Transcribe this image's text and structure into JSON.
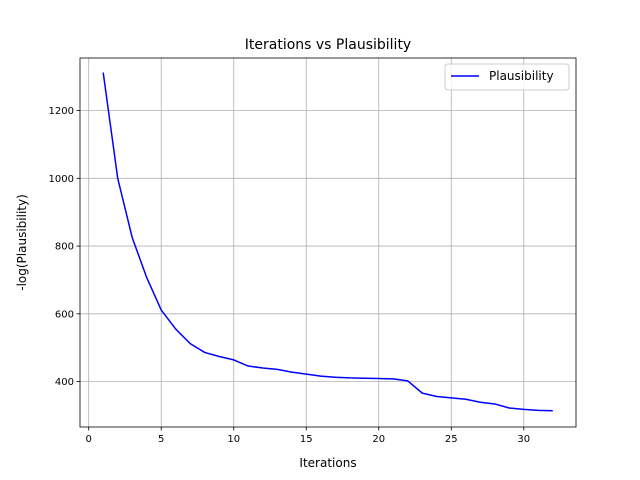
{
  "chart_data": {
    "type": "line",
    "title": "Iterations vs Plausibility",
    "xlabel": "Iterations",
    "ylabel": "-log(Plausibility)",
    "xlim": [
      -0.6,
      33.6
    ],
    "ylim": [
      266,
      1355
    ],
    "xticks": [
      0,
      5,
      10,
      15,
      20,
      25,
      30
    ],
    "yticks": [
      400,
      600,
      800,
      1000,
      1200
    ],
    "grid": true,
    "legend_position": "top-right",
    "series": [
      {
        "name": "Plausibility",
        "color": "#0000ff",
        "x": [
          1,
          2,
          3,
          4,
          5,
          6,
          7,
          8,
          9,
          10,
          11,
          12,
          13,
          14,
          15,
          16,
          17,
          18,
          19,
          20,
          21,
          22,
          23,
          24,
          25,
          26,
          27,
          28,
          29,
          30,
          31,
          32
        ],
        "y": [
          1312,
          1000,
          825,
          707,
          611,
          555,
          512,
          486,
          474,
          464,
          446,
          440,
          436,
          428,
          422,
          416,
          413,
          411,
          410,
          409,
          408,
          402,
          366,
          356,
          352,
          348,
          339,
          334,
          322,
          318,
          315,
          314
        ]
      }
    ]
  }
}
